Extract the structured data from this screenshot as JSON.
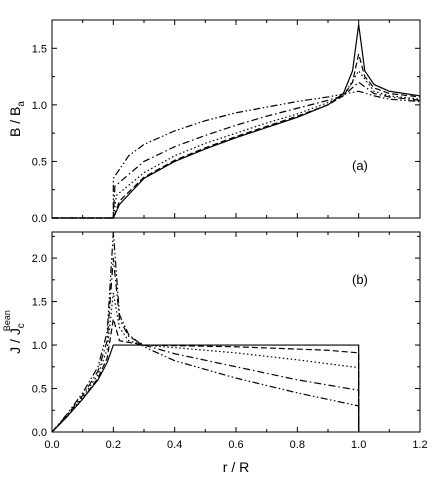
{
  "chart_data": [
    {
      "type": "line",
      "panel_label": "(a)",
      "ylabel_main": "B / B",
      "ylabel_sub": "a",
      "xlim": [
        0,
        1.2
      ],
      "ylim": [
        0,
        1.75
      ],
      "yticks": [
        0.0,
        0.5,
        1.0,
        1.5
      ],
      "yticklabels": [
        "0.0",
        "0.5",
        "1.0",
        "1.5"
      ],
      "grid": false,
      "series": [
        {
          "style": "solid",
          "x": [
            0,
            0.2,
            0.22,
            0.3,
            0.4,
            0.5,
            0.6,
            0.7,
            0.8,
            0.9,
            0.95,
            0.98,
            1.0,
            1.02,
            1.05,
            1.1,
            1.2
          ],
          "y": [
            0,
            0,
            0.12,
            0.35,
            0.5,
            0.61,
            0.71,
            0.8,
            0.89,
            1.0,
            1.1,
            1.3,
            1.71,
            1.3,
            1.18,
            1.12,
            1.08
          ]
        },
        {
          "style": "dash",
          "x": [
            0,
            0.2,
            0.22,
            0.3,
            0.4,
            0.5,
            0.6,
            0.7,
            0.8,
            0.9,
            0.95,
            0.98,
            1.0,
            1.02,
            1.05,
            1.1,
            1.2
          ],
          "y": [
            0,
            0,
            0.15,
            0.36,
            0.51,
            0.62,
            0.72,
            0.81,
            0.9,
            1.0,
            1.08,
            1.2,
            1.45,
            1.25,
            1.15,
            1.1,
            1.07
          ]
        },
        {
          "style": "dot",
          "x": [
            0,
            0.2,
            0.21,
            0.3,
            0.4,
            0.5,
            0.6,
            0.7,
            0.8,
            0.9,
            0.95,
            1.0,
            1.05,
            1.1,
            1.2
          ],
          "y": [
            0,
            0,
            0.2,
            0.4,
            0.55,
            0.66,
            0.75,
            0.84,
            0.92,
            1.02,
            1.08,
            1.3,
            1.12,
            1.08,
            1.05
          ]
        },
        {
          "style": "dashdot",
          "x": [
            0,
            0.2,
            0.205,
            0.3,
            0.4,
            0.5,
            0.6,
            0.7,
            0.8,
            0.9,
            0.95,
            1.0,
            1.05,
            1.1,
            1.2
          ],
          "y": [
            0,
            0,
            0.28,
            0.5,
            0.63,
            0.73,
            0.82,
            0.9,
            0.97,
            1.04,
            1.08,
            1.2,
            1.1,
            1.07,
            1.04
          ]
        },
        {
          "style": "dashdotdot",
          "x": [
            0,
            0.2,
            0.2,
            0.25,
            0.3,
            0.4,
            0.5,
            0.6,
            0.7,
            0.8,
            0.9,
            1.0,
            1.05,
            1.1,
            1.2
          ],
          "y": [
            0,
            0,
            0.35,
            0.55,
            0.65,
            0.77,
            0.86,
            0.93,
            0.98,
            1.03,
            1.07,
            1.12,
            1.08,
            1.05,
            1.03
          ]
        }
      ]
    },
    {
      "type": "line",
      "panel_label": "(b)",
      "ylabel_main": "J / J",
      "ylabel_sub": "c",
      "ylabel_sup": "Bean",
      "xlabel": "r / R",
      "xlim": [
        0,
        1.2
      ],
      "ylim": [
        0,
        2.3
      ],
      "xticks": [
        0.0,
        0.2,
        0.4,
        0.6,
        0.8,
        1.0,
        1.2
      ],
      "xticklabels": [
        "0.0",
        "0.2",
        "0.4",
        "0.6",
        "0.8",
        "1.0",
        "1.2"
      ],
      "yticks": [
        0.0,
        0.5,
        1.0,
        1.5,
        2.0
      ],
      "yticklabels": [
        "0.0",
        "0.5",
        "1.0",
        "1.5",
        "2.0"
      ],
      "grid": false,
      "series": [
        {
          "style": "solid",
          "x": [
            0,
            0.05,
            0.1,
            0.15,
            0.18,
            0.2,
            0.2,
            0.6,
            1.0,
            1.0
          ],
          "y": [
            0,
            0.18,
            0.38,
            0.6,
            0.8,
            1.0,
            1.0,
            1.0,
            1.0,
            0
          ]
        },
        {
          "style": "dash",
          "x": [
            0,
            0.05,
            0.1,
            0.15,
            0.18,
            0.2,
            0.22,
            0.3,
            0.6,
            0.9,
            1.0,
            1.0
          ],
          "y": [
            0,
            0.18,
            0.38,
            0.62,
            0.85,
            1.3,
            1.05,
            1.0,
            0.98,
            0.94,
            0.91,
            0
          ]
        },
        {
          "style": "dot",
          "x": [
            0,
            0.05,
            0.1,
            0.15,
            0.18,
            0.2,
            0.22,
            0.25,
            0.3,
            0.4,
            0.6,
            0.8,
            1.0,
            1.0
          ],
          "y": [
            0,
            0.19,
            0.4,
            0.66,
            0.95,
            1.6,
            1.2,
            1.05,
            1.0,
            0.97,
            0.91,
            0.83,
            0.74,
            0
          ]
        },
        {
          "style": "dashdot",
          "x": [
            0,
            0.05,
            0.1,
            0.15,
            0.18,
            0.2,
            0.22,
            0.25,
            0.3,
            0.4,
            0.6,
            0.8,
            1.0,
            1.0
          ],
          "y": [
            0,
            0.2,
            0.42,
            0.7,
            1.05,
            2.0,
            1.3,
            1.1,
            1.0,
            0.9,
            0.75,
            0.6,
            0.48,
            0
          ]
        },
        {
          "style": "dashdotdot",
          "x": [
            0,
            0.05,
            0.1,
            0.15,
            0.18,
            0.2,
            0.22,
            0.25,
            0.3,
            0.4,
            0.6,
            0.8,
            1.0,
            1.0
          ],
          "y": [
            0,
            0.21,
            0.45,
            0.75,
            1.15,
            2.3,
            1.35,
            1.12,
            0.98,
            0.82,
            0.62,
            0.45,
            0.3,
            0
          ]
        }
      ]
    }
  ]
}
